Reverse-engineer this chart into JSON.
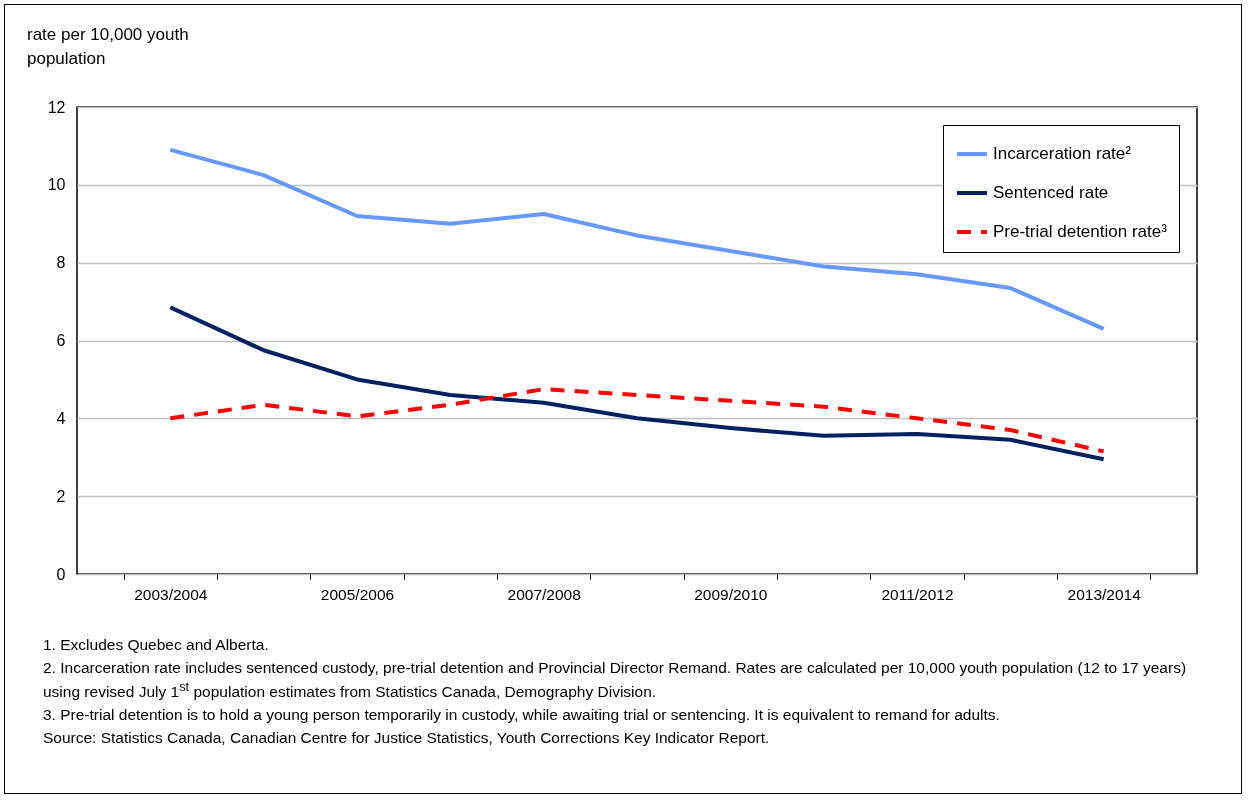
{
  "chart_data": {
    "type": "line",
    "ylabel": "rate per 10,000 youth population",
    "categories": [
      "2003/2004",
      null,
      "2005/2006",
      null,
      "2007/2008",
      null,
      "2009/2010",
      null,
      "2011/2012",
      null,
      "2013/2014"
    ],
    "series": [
      {
        "name": "Incarceration rate²",
        "color": "#6699ff",
        "line_style": "solid",
        "values": [
          10.9,
          10.25,
          9.2,
          9.0,
          9.25,
          8.7,
          8.3,
          7.9,
          7.7,
          7.35,
          6.3
        ]
      },
      {
        "name": "Sentenced rate",
        "color": "#002060",
        "line_style": "solid",
        "values": [
          6.85,
          5.75,
          5.0,
          4.6,
          4.4,
          4.0,
          3.75,
          3.55,
          3.6,
          3.45,
          2.95
        ]
      },
      {
        "name": "Pre-trial detention rate³",
        "color": "#ff0000",
        "line_style": "dashed",
        "values": [
          4.0,
          4.35,
          4.05,
          4.35,
          4.75,
          4.6,
          4.45,
          4.3,
          4.0,
          3.7,
          3.15
        ]
      }
    ],
    "ylim": [
      0,
      12
    ],
    "yticks": [
      0,
      2,
      4,
      6,
      8,
      10,
      12
    ],
    "grid": "y",
    "legend": "top right",
    "marker": "none",
    "annotations": [
      "1. Excludes Quebec and Alberta.",
      "2. Incarceration rate includes sentenced custody, pre-trial detention and Provincial Director Remand. Rates are calculated per 10,000 youth population (12 to 17 years) using revised July 1$^{st}$ population estimates from Statistics Canada, Demography Division.",
      "3. Pre-trial detention is to hold a young person temporarily in custody, while awaiting trial or sentencing. It is equivalent to remand for adults.",
      "Source: Statistics Canada, Canadian Centre for Justice Statistics, Youth Corrections Key Indicator Report."
    ]
  }
}
